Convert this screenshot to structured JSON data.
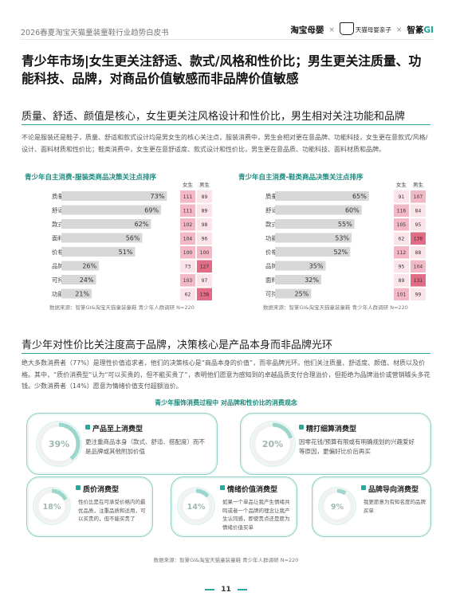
{
  "header": {
    "doc_title": "2026春夏淘宝天猫童装童鞋行业趋势白皮书",
    "logo_taobao": "淘宝母婴",
    "logo_sep": "×",
    "logo_tmall": "天猫母婴亲子",
    "logo_zhiji": "智篆",
    "logo_zhiji_gi": "GI"
  },
  "main_title": "青少年市场|女生更关注舒适、款式/风格和性价比；男生更关注质量、功能科技、品牌，对商品价值敏感而非品牌价值敏感",
  "section1": {
    "title": "质量、舒适、颜值是核心，女生更关注风格设计和性价比，男生相对关注功能和品牌",
    "paragraph": "不论是服装还是鞋子，质量、舒适和款式设计均是男女生的核心关注点，服装消费中，男生会相对更在意品牌、功能科技，女生更在意款式/风格/设计、面料材质和性价比；鞋类消费中，女生更在意舒适度、款式设计和性价比，男生更在意品质、功能科技、面料材质和品牌。",
    "source_left": "数据来源：智篆GI&淘宝天猫童装童鞋 青少年人群调研 N=220",
    "source_right": "数据来源：智篆GI&淘宝天猫童装童鞋 青少年人群调研 N=220"
  },
  "chart_data": [
    {
      "type": "bar",
      "title": "青少年自主消费-服装类商品决策关注点排序",
      "categories": [
        "质量",
        "舒适",
        "款式/风格/设计",
        "面料/材质",
        "价格/性价比",
        "品牌",
        "可持续环保",
        "功能/科技"
      ],
      "values": [
        73,
        69,
        62,
        56,
        51,
        26,
        24,
        21
      ],
      "unit": "%",
      "xlim": [
        0,
        100
      ],
      "index_headers": [
        "女生",
        "男生"
      ],
      "index_female": [
        111,
        111,
        102,
        104,
        100,
        73,
        103,
        62
      ],
      "index_male": [
        89,
        89,
        98,
        96,
        100,
        127,
        97,
        138
      ]
    },
    {
      "type": "bar",
      "title": "青少年自主消费-鞋类商品决策关注点排序",
      "categories": [
        "质量",
        "舒适",
        "款式/风格/设计",
        "功能/科技",
        "价格/性价比",
        "品牌",
        "面料/材质",
        "可持续环保"
      ],
      "values": [
        65,
        60,
        55,
        53,
        52,
        35,
        32,
        25
      ],
      "unit": "%",
      "xlim": [
        0,
        100
      ],
      "index_headers": [
        "女生",
        "男生"
      ],
      "index_female": [
        91,
        116,
        105,
        62,
        112,
        95,
        89,
        101
      ],
      "index_male": [
        107,
        84,
        95,
        138,
        88,
        104,
        131,
        99
      ]
    }
  ],
  "section2": {
    "title": "青少年对性价比关注度高于品牌，决策核心是产品本身而非品牌光环",
    "paragraph": "绝大多数消费者（77%）是理性价值追求者，他们的决策核心是“商品本身的价值”，而非品牌光环。他们关注质量、舒适度、颜值、材质以及价格。其中，“质价消费型”认为“可以买贵的，但不能买贵了”，表明他们愿意为感知到的卓越品质支付合理溢价，但拒绝为品牌溢价或营销噱头多花钱。少数消费者（14%）愿意为情绪价值支付超额溢价。",
    "concept_title": "青少年服饰消费过程中 对品牌和性价比的消费观念",
    "cards": [
      {
        "pct": "39%",
        "value": 39,
        "title": "产品至上消费型",
        "text": "更注重商品本身（款式、舒适、搭配度）而不是品牌或其他附加价值"
      },
      {
        "pct": "20%",
        "value": 20,
        "title": "精打细算消费型",
        "text": "因零花钱/预算有限或有明确规划的兴趣爱好等原因，更偏好比价后再买"
      },
      {
        "pct": "18%",
        "value": 18,
        "title": "质价消费型",
        "text": "性价比是在可承受价格内的最优品质，注重品质和适用，可以买贵的，但不能买贵了"
      },
      {
        "pct": "14%",
        "value": 14,
        "title": "情绪价值消费型",
        "text": "如果一个单品让我产生情绪共鸣或者一个品牌的理念让我产生认同感，即使贵点还是愿为情绪价值买单"
      },
      {
        "pct": "9%",
        "value": 9,
        "title": "品牌导向消费型",
        "text": "我更愿意为有知名度的品牌买单"
      }
    ],
    "source": "数据来源：智篆GI&淘宝天猫童装童鞋 青少年人群调研 N=220"
  },
  "page_number": "11",
  "colors": {
    "accent": "#2aa69a",
    "bar": "#d7d7d7",
    "index_high": "#e26b86",
    "index_mid": "#f2b8c6",
    "index_low": "#fbe3ea",
    "ring": "#9bd6cd"
  }
}
